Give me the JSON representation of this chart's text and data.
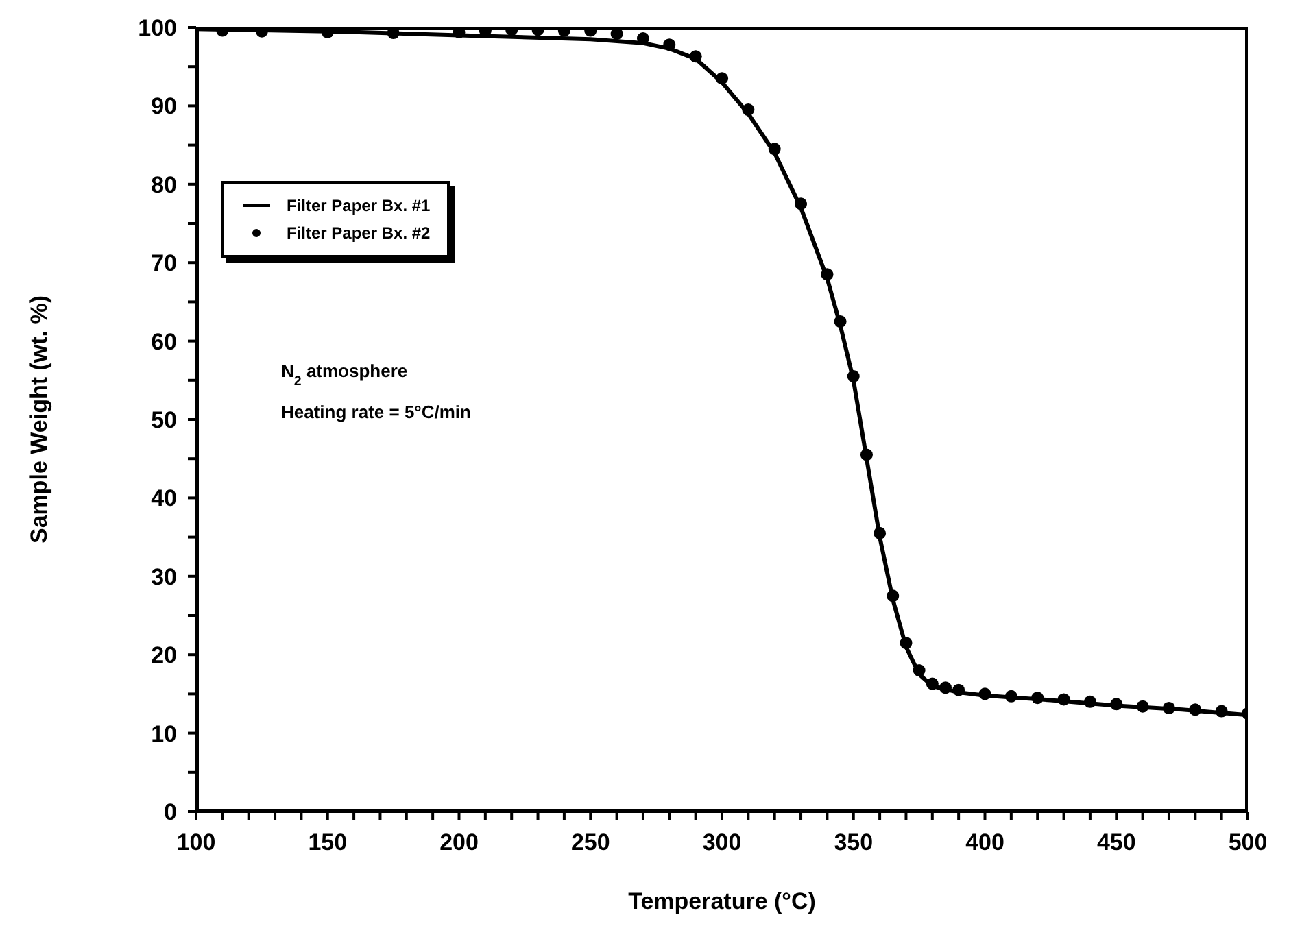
{
  "chart_data": {
    "type": "line",
    "xlabel": "Temperature (°C)",
    "ylabel": "Sample Weight (wt. %)",
    "xlim": [
      100,
      500
    ],
    "ylim": [
      0,
      100
    ],
    "xticks": [
      100,
      {
        "value": 110,
        "label": null
      },
      {
        "value": 120,
        "label": null
      },
      {
        "value": 130,
        "label": null
      },
      {
        "value": 140,
        "label": null
      },
      150,
      {
        "value": 160,
        "label": null
      },
      {
        "value": 170,
        "label": null
      },
      {
        "value": 180,
        "label": null
      },
      {
        "value": 190,
        "label": null
      },
      200,
      {
        "value": 210,
        "label": null
      },
      {
        "value": 220,
        "label": null
      },
      {
        "value": 230,
        "label": null
      },
      {
        "value": 240,
        "label": null
      },
      250,
      {
        "value": 260,
        "label": null
      },
      {
        "value": 270,
        "label": null
      },
      {
        "value": 280,
        "label": null
      },
      {
        "value": 290,
        "label": null
      },
      300,
      {
        "value": 310,
        "label": null
      },
      {
        "value": 320,
        "label": null
      },
      {
        "value": 330,
        "label": null
      },
      {
        "value": 340,
        "label": null
      },
      350,
      {
        "value": 360,
        "label": null
      },
      {
        "value": 370,
        "label": null
      },
      {
        "value": 380,
        "label": null
      },
      {
        "value": 390,
        "label": null
      },
      400,
      {
        "value": 410,
        "label": null
      },
      {
        "value": 420,
        "label": null
      },
      {
        "value": 430,
        "label": null
      },
      {
        "value": 440,
        "label": null
      },
      450,
      {
        "value": 460,
        "label": null
      },
      {
        "value": 470,
        "label": null
      },
      {
        "value": 480,
        "label": null
      },
      {
        "value": 490,
        "label": null
      },
      500
    ],
    "yticks": [
      0,
      {
        "value": 5,
        "label": null
      },
      10,
      {
        "value": 15,
        "label": null
      },
      20,
      {
        "value": 25,
        "label": null
      },
      30,
      {
        "value": 35,
        "label": null
      },
      40,
      {
        "value": 45,
        "label": null
      },
      50,
      {
        "value": 55,
        "label": null
      },
      60,
      {
        "value": 65,
        "label": null
      },
      70,
      {
        "value": 75,
        "label": null
      },
      80,
      {
        "value": 85,
        "label": null
      },
      90,
      {
        "value": 95,
        "label": null
      },
      100
    ],
    "grid": false,
    "legend": "top left",
    "annotations": [
      "N$_{2}$ atmosphere",
      "Heating rate = 5°C/min"
    ],
    "series": [
      {
        "name": "Filter Paper Bx. #1",
        "color": "#000000",
        "marker": "none",
        "x": [
          100,
          150,
          200,
          250,
          270,
          280,
          290,
          300,
          310,
          320,
          330,
          340,
          345,
          350,
          355,
          360,
          365,
          370,
          375,
          380,
          390,
          400,
          425,
          450,
          475,
          500
        ],
        "values": [
          99.8,
          99.5,
          99,
          98.5,
          98,
          97.3,
          96,
          93,
          89,
          84,
          77,
          68,
          62,
          55,
          45,
          35,
          27,
          21,
          17.5,
          16,
          15.2,
          14.8,
          14.2,
          13.5,
          13,
          12.3
        ]
      },
      {
        "name": "Filter Paper Bx. #2",
        "color": "#000000",
        "type": "scatter",
        "marker": "circle",
        "x": [
          110,
          125,
          150,
          175,
          200,
          210,
          220,
          230,
          240,
          250,
          260,
          270,
          280,
          290,
          300,
          310,
          320,
          330,
          340,
          345,
          350,
          355,
          360,
          365,
          370,
          375,
          380,
          385,
          390,
          400,
          410,
          420,
          430,
          440,
          450,
          460,
          470,
          480,
          490,
          500
        ],
        "values": [
          99.6,
          99.5,
          99.4,
          99.3,
          99.4,
          99.6,
          99.7,
          99.7,
          99.6,
          99.6,
          99.2,
          98.6,
          97.8,
          96.3,
          93.5,
          89.5,
          84.5,
          77.5,
          68.5,
          62.5,
          55.5,
          45.5,
          35.5,
          27.5,
          21.5,
          18,
          16.3,
          15.8,
          15.5,
          15,
          14.7,
          14.5,
          14.3,
          14,
          13.7,
          13.4,
          13.2,
          13,
          12.8,
          12.5
        ]
      }
    ]
  }
}
